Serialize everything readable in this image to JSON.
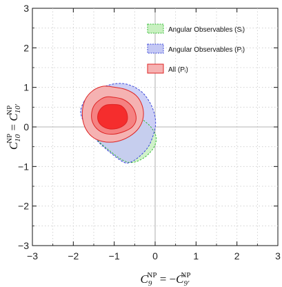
{
  "chart_data": {
    "type": "contour",
    "xlim": [
      -3,
      3
    ],
    "ylim": [
      -3,
      3
    ],
    "x_ticks": [
      -3,
      -2,
      -1,
      0,
      1,
      2,
      3
    ],
    "y_ticks": [
      -3,
      -2,
      -1,
      0,
      1,
      2,
      3
    ],
    "x_tick_labels": [
      "−3",
      "−2",
      "−1",
      "0",
      "1",
      "2",
      "3"
    ],
    "y_tick_labels": [
      "−3",
      "−2",
      "−1",
      "0",
      "1",
      "2",
      "3"
    ],
    "grid": true,
    "xlabel": "C₉ᴺᴾ = −C₉′ᴺᴾ",
    "ylabel": "C₁₀ᴺᴾ = C₁₀′ᴺᴾ",
    "legend_position": "top-right",
    "legend": [
      {
        "label": "Angular Observables (Sᵢ)",
        "fill": "#c8f0c0",
        "stroke": "#33bb33",
        "dashed": true
      },
      {
        "label": "Angular Observables (Pᵢ)",
        "fill": "#c4c8f4",
        "stroke": "#3a46d8",
        "dashed": true
      },
      {
        "label": "All (Pᵢ)",
        "fill": "#f5b2b2",
        "stroke": "#dd2222",
        "dashed": false
      }
    ],
    "series": [
      {
        "name": "Angular Observables (Sᵢ)",
        "fill": "#c8f0c0",
        "stroke": "#33bb33",
        "regions": [
          [
            [
              -0.96,
              0.44
            ],
            [
              -0.84,
              0.47
            ],
            [
              -0.66,
              0.41
            ],
            [
              -0.46,
              0.29
            ],
            [
              -0.26,
              0.15
            ],
            [
              -0.09,
              -0.02
            ],
            [
              0.02,
              -0.24
            ],
            [
              0.0,
              -0.45
            ],
            [
              -0.12,
              -0.64
            ],
            [
              -0.32,
              -0.81
            ],
            [
              -0.57,
              -0.9
            ],
            [
              -0.81,
              -0.83
            ],
            [
              -1.14,
              -0.58
            ],
            [
              -1.44,
              -0.3
            ],
            [
              -1.62,
              -0.02
            ],
            [
              -1.7,
              0.26
            ],
            [
              -1.64,
              0.54
            ],
            [
              -1.32,
              0.56
            ]
          ]
        ]
      },
      {
        "name": "Angular Observables (Pᵢ)",
        "fill": "#c4c8f4",
        "stroke": "#3a46d8",
        "regions": [
          [
            [
              -1.75,
              0.62
            ],
            [
              -1.63,
              0.77
            ],
            [
              -1.38,
              0.95
            ],
            [
              -1.09,
              1.07
            ],
            [
              -0.81,
              1.1
            ],
            [
              -0.55,
              1.03
            ],
            [
              -0.31,
              0.87
            ],
            [
              -0.13,
              0.62
            ],
            [
              -0.02,
              0.34
            ],
            [
              0.01,
              0.05
            ],
            [
              -0.06,
              -0.25
            ],
            [
              -0.18,
              -0.52
            ],
            [
              -0.4,
              -0.76
            ],
            [
              -0.62,
              -0.9
            ],
            [
              -0.79,
              -0.88
            ],
            [
              -1.13,
              -0.62
            ],
            [
              -1.45,
              -0.31
            ],
            [
              -1.71,
              0.06
            ],
            [
              -1.82,
              0.37
            ]
          ]
        ]
      },
      {
        "name": "All (Pᵢ)",
        "fill": "#f5b2b2",
        "stroke": "#dd2222",
        "regions": [
          [
            [
              -1.03,
              1.01
            ],
            [
              -0.73,
              0.95
            ],
            [
              -0.47,
              0.8
            ],
            [
              -0.32,
              0.55
            ],
            [
              -0.29,
              0.25
            ],
            [
              -0.4,
              -0.03
            ],
            [
              -0.63,
              -0.24
            ],
            [
              -0.95,
              -0.37
            ],
            [
              -1.27,
              -0.37
            ],
            [
              -1.55,
              -0.24
            ],
            [
              -1.73,
              0.03
            ],
            [
              -1.78,
              0.36
            ],
            [
              -1.71,
              0.69
            ],
            [
              -1.52,
              0.92
            ],
            [
              -1.27,
              1.03
            ]
          ],
          [
            [
              -1.02,
              0.75
            ],
            [
              -0.79,
              0.7
            ],
            [
              -0.6,
              0.56
            ],
            [
              -0.49,
              0.37
            ],
            [
              -0.47,
              0.16
            ],
            [
              -0.57,
              -0.01
            ],
            [
              -0.77,
              -0.12
            ],
            [
              -1.0,
              -0.18
            ],
            [
              -1.24,
              -0.16
            ],
            [
              -1.43,
              -0.04
            ],
            [
              -1.54,
              0.15
            ],
            [
              -1.55,
              0.37
            ],
            [
              -1.48,
              0.56
            ],
            [
              -1.33,
              0.7
            ],
            [
              -1.18,
              0.76
            ]
          ],
          [
            [
              -1.05,
              0.57
            ],
            [
              -0.86,
              0.55
            ],
            [
              -0.74,
              0.45
            ],
            [
              -0.68,
              0.3
            ],
            [
              -0.69,
              0.14
            ],
            [
              -0.78,
              0.03
            ],
            [
              -0.93,
              -0.04
            ],
            [
              -1.12,
              -0.05
            ],
            [
              -1.29,
              0.02
            ],
            [
              -1.39,
              0.15
            ],
            [
              -1.4,
              0.31
            ],
            [
              -1.33,
              0.46
            ],
            [
              -1.21,
              0.55
            ]
          ]
        ]
      }
    ],
    "colors": {
      "region_levels": [
        "#f5b2b2",
        "#f58282",
        "#f52d2d"
      ],
      "grid": "#c8c8c8",
      "axis_zero": "#9a9a9a"
    }
  }
}
